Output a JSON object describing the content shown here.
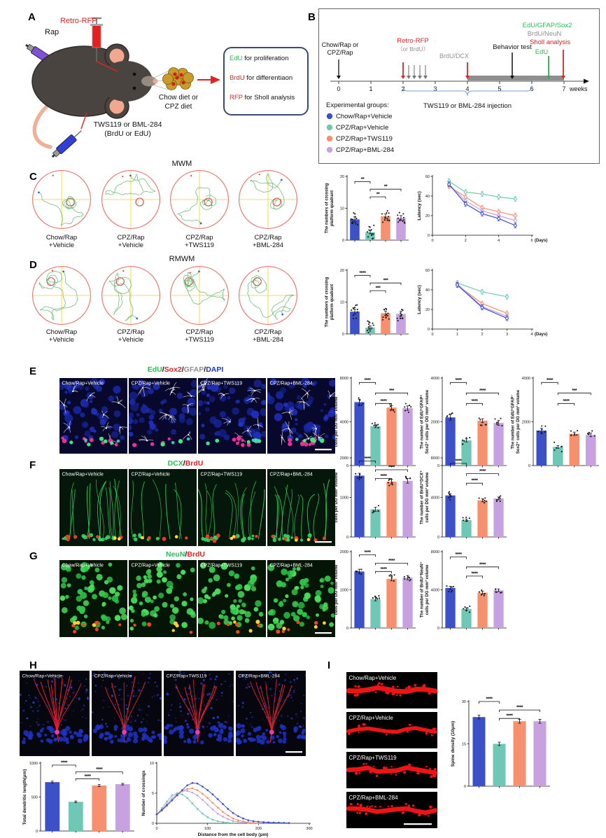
{
  "colors": {
    "blue": "#3c50c8",
    "teal": "#6fc7b5",
    "salmon": "#f7906e",
    "violet": "#c7a1e0",
    "green_text": "#22c552",
    "red_text": "#e32222",
    "gray_text": "#909090",
    "blue_text": "#1a35e0",
    "maze_circle": "#e87a72",
    "maze_cross": "#f0e050",
    "maze_path": "#55b060"
  },
  "groups": [
    {
      "line1": "Chow/Rap",
      "line2": "+Vehicle",
      "full": "Chow/Rap+Vehicle"
    },
    {
      "line1": "CPZ/Rap",
      "line2": "+Vehicle",
      "full": "CPZ/Rap+Vehicle"
    },
    {
      "line1": "CPZ/Rap",
      "line2": "+TWS119",
      "full": "CPZ/Rap+TWS119"
    },
    {
      "line1": "CPZ/Rap",
      "line2": "+BML-284",
      "full": "CPZ/Rap+BML-284"
    }
  ],
  "panelA": {
    "label": "A",
    "rap": "Rap",
    "retro_rfp": "Retro-RFP",
    "tws": "TWS119 or BML-284",
    "tws2": "(BrdU or EdU)",
    "diet1": "Chow diet or",
    "diet2": "CPZ diet",
    "box_lines": [
      {
        "key": "EdU",
        "key_color": "#22c552",
        "rest": " for proliferation"
      },
      {
        "key": "BrdU",
        "key_color": "#e32222",
        "rest": " for differentiaon"
      },
      {
        "key": "RFP",
        "key_color": "#e32222",
        "rest": " for Sholl analysis"
      }
    ]
  },
  "panelB": {
    "label": "B",
    "start1": "Chow/Rap or",
    "start2": "CPZ/Rap",
    "retro": "Retro-RFP",
    "or_brdu": "（or BrdU）",
    "brdu_dcx": "BrdU/DCX",
    "behavior": "Behavior test",
    "edu_gfap_sox2": "EdU/GFAP/Sox2",
    "brdu_neun": "BrdU/NeuN",
    "sholl": "Sholl analysis",
    "edu": "EdU",
    "weeks_label": "weeks",
    "week_numbers": [
      "0",
      "1",
      "2",
      "3",
      "4",
      "5",
      "6",
      "7"
    ],
    "bracket_label": "TWS119 or BML-284 injection",
    "legend_title": "Experimental groups:"
  },
  "panelC": {
    "label": "C",
    "title": "MWM"
  },
  "panelD": {
    "label": "D",
    "title": "RMWM"
  },
  "panelE": {
    "label": "E",
    "title_parts": [
      {
        "t": "EdU",
        "c": "#22c552"
      },
      {
        "t": "/",
        "c": "#111"
      },
      {
        "t": "Sox2",
        "c": "#e32222"
      },
      {
        "t": "/",
        "c": "#111"
      },
      {
        "t": "GFAP",
        "c": "#909090"
      },
      {
        "t": "/",
        "c": "#111"
      },
      {
        "t": "DAPI",
        "c": "#1a35e0"
      }
    ]
  },
  "panelF": {
    "label": "F",
    "title_parts": [
      {
        "t": "DCX",
        "c": "#22c552"
      },
      {
        "t": "/",
        "c": "#111"
      },
      {
        "t": "BrdU",
        "c": "#e32222"
      }
    ]
  },
  "panelG": {
    "label": "G",
    "title_parts": [
      {
        "t": "NeuN",
        "c": "#22c552"
      },
      {
        "t": "/",
        "c": "#111"
      },
      {
        "t": "BrdU",
        "c": "#e32222"
      }
    ]
  },
  "panelH": {
    "label": "H"
  },
  "panelI": {
    "label": "I"
  },
  "chart_data": [
    {
      "id": "mwm_cross",
      "type": "bar",
      "ylabel": [
        "The numbers of crossing",
        "platform quadrant"
      ],
      "ylim": [
        0,
        20
      ],
      "yticks": [
        0,
        10,
        20
      ],
      "values": [
        6.5,
        2.5,
        7.5,
        7.0
      ],
      "errors": [
        0.8,
        0.5,
        0.7,
        0.7
      ],
      "dots": 12,
      "spread": 2.2,
      "sig": [
        {
          "a": 0,
          "b": 1,
          "s": "**",
          "h": 0.92
        },
        {
          "a": 1,
          "b": 3,
          "s": "**",
          "h": 0.8
        },
        {
          "a": 1,
          "b": 2,
          "s": "**",
          "h": 0.68
        }
      ]
    },
    {
      "id": "mwm_latency",
      "type": "line",
      "ylabel": "Latency (sec)",
      "xlabel": "(Days)",
      "ylim": [
        0,
        60
      ],
      "yticks": [
        0,
        20,
        40,
        60
      ],
      "xlim": [
        0,
        6
      ],
      "xticks": [
        0,
        2,
        4,
        6
      ],
      "x": [
        1,
        2,
        3,
        4,
        5
      ],
      "err": 2.5,
      "series": [
        {
          "color": "teal",
          "y": [
            55,
            44,
            42,
            39,
            37
          ]
        },
        {
          "color": "salmon",
          "y": [
            50,
            39,
            28,
            24,
            20
          ]
        },
        {
          "color": "violet",
          "y": [
            52,
            35,
            25,
            20,
            15
          ]
        },
        {
          "color": "blue",
          "y": [
            52,
            32,
            22,
            17,
            10
          ]
        }
      ]
    },
    {
      "id": "rmwm_cross",
      "type": "bar",
      "ylabel": [
        "The numbers of crossing",
        "platform quadrant"
      ],
      "ylim": [
        0,
        20
      ],
      "yticks": [
        0,
        10,
        20
      ],
      "values": [
        7.0,
        2.0,
        6.5,
        6.3
      ],
      "errors": [
        0.7,
        0.5,
        0.7,
        0.8
      ],
      "dots": 12,
      "spread": 2.2,
      "sig": [
        {
          "a": 0,
          "b": 1,
          "s": "****",
          "h": 0.92
        },
        {
          "a": 1,
          "b": 3,
          "s": "***",
          "h": 0.8
        },
        {
          "a": 1,
          "b": 2,
          "s": "***",
          "h": 0.68
        }
      ]
    },
    {
      "id": "rmwm_latency",
      "type": "line",
      "ylabel": "Latency (sec)",
      "xlabel": "(Days)",
      "ylim": [
        0,
        60
      ],
      "yticks": [
        0,
        20,
        40,
        60
      ],
      "xlim": [
        0,
        4
      ],
      "xticks": [
        0,
        1,
        2,
        3,
        4
      ],
      "x": [
        1,
        2,
        3
      ],
      "err": 2.5,
      "series": [
        {
          "color": "teal",
          "y": [
            47,
            38,
            33
          ]
        },
        {
          "color": "salmon",
          "y": [
            45,
            26,
            16
          ]
        },
        {
          "color": "violet",
          "y": [
            46,
            23,
            13
          ]
        },
        {
          "color": "blue",
          "y": [
            45,
            22,
            11
          ]
        }
      ]
    },
    {
      "id": "edu_cells",
      "type": "bar",
      "ylabel": [
        "The number of EdU⁺",
        "cells per DG mm³ volume"
      ],
      "ylim": [
        0,
        8000
      ],
      "yticks": [
        0,
        4000,
        8000
      ],
      "values": [
        5800,
        3600,
        5300,
        5250
      ],
      "errors": [
        260,
        140,
        180,
        200
      ],
      "dots": 6,
      "spread": 420,
      "sig": [
        {
          "a": 0,
          "b": 1,
          "s": "****",
          "h": 0.95
        },
        {
          "a": 1,
          "b": 3,
          "s": "***",
          "h": 0.83
        },
        {
          "a": 1,
          "b": 2,
          "s": "****",
          "h": 0.71
        }
      ]
    },
    {
      "id": "edu_gfap_sox2",
      "type": "bar",
      "ylabel": [
        "The number of EdU⁺GFAP⁺",
        "Sox2⁺ cells per DG mm³ volume"
      ],
      "ylim": [
        0,
        4000
      ],
      "yticks": [
        0,
        2000,
        4000
      ],
      "values": [
        2200,
        1150,
        2050,
        1950
      ],
      "errors": [
        130,
        70,
        90,
        110
      ],
      "dots": 6,
      "sig": [
        {
          "a": 0,
          "b": 1,
          "s": "****",
          "h": 0.95
        },
        {
          "a": 1,
          "b": 3,
          "s": "****",
          "h": 0.83
        },
        {
          "a": 1,
          "b": 2,
          "s": "****",
          "h": 0.71
        }
      ]
    },
    {
      "id": "edu_nogfap_sox2",
      "type": "bar",
      "ylabel": [
        "The number of EdU⁺GFAP⁻",
        "Sox2⁺ cells per DG mm³ volume"
      ],
      "ylim": [
        0,
        4000
      ],
      "yticks": [
        0,
        2000,
        4000
      ],
      "values": [
        1600,
        850,
        1450,
        1400
      ],
      "errors": [
        100,
        60,
        80,
        80
      ],
      "dots": 6,
      "sig": [
        {
          "a": 0,
          "b": 1,
          "s": "****",
          "h": 0.95
        },
        {
          "a": 1,
          "b": 3,
          "s": "***",
          "h": 0.83
        },
        {
          "a": 1,
          "b": 2,
          "s": "****",
          "h": 0.71
        }
      ]
    },
    {
      "id": "brdu_cells_f",
      "type": "bar",
      "ylabel": [
        "The number of BrdU⁺",
        "cells per DG mm³ volume"
      ],
      "ylim": [
        0,
        2000
      ],
      "yticks": [
        0,
        1000,
        2000
      ],
      "values": [
        1550,
        700,
        1400,
        1420
      ],
      "errors": [
        60,
        50,
        60,
        60
      ],
      "dots": 6,
      "sig": [
        {
          "a": 0,
          "b": 1,
          "s": "****",
          "h": 0.96
        },
        {
          "a": 1,
          "b": 3,
          "s": "****",
          "h": 0.85
        },
        {
          "a": 1,
          "b": 2,
          "s": "****",
          "h": 0.74
        }
      ]
    },
    {
      "id": "brdu_dcx",
      "type": "bar",
      "ylabel": [
        "The number of BrdU⁺DCX⁺",
        "cells per DG mm³ volume"
      ],
      "ylim": [
        0,
        8000
      ],
      "yticks": [
        0,
        4000,
        8000
      ],
      "values": [
        4200,
        1700,
        3700,
        3900
      ],
      "errors": [
        170,
        120,
        150,
        140
      ],
      "dots": 6,
      "sig": [
        {
          "a": 0,
          "b": 1,
          "s": "****",
          "h": 0.93
        },
        {
          "a": 1,
          "b": 3,
          "s": "****",
          "h": 0.8
        },
        {
          "a": 1,
          "b": 2,
          "s": "****",
          "h": 0.68
        }
      ]
    },
    {
      "id": "brdu_cells_g",
      "type": "bar",
      "ylabel": [
        "The number of BrdU⁺",
        "cells per DG mm³ volume"
      ],
      "ylim": [
        0,
        2000
      ],
      "yticks": [
        0,
        1000,
        2000
      ],
      "values": [
        1480,
        760,
        1290,
        1320
      ],
      "errors": [
        60,
        50,
        55,
        55
      ],
      "dots": 6,
      "sig": [
        {
          "a": 0,
          "b": 1,
          "s": "****",
          "h": 0.96
        },
        {
          "a": 1,
          "b": 3,
          "s": "****",
          "h": 0.85
        },
        {
          "a": 1,
          "b": 2,
          "s": "****",
          "h": 0.74
        }
      ]
    },
    {
      "id": "brdu_neun",
      "type": "bar",
      "ylabel": [
        "The number of BrdU⁺NeuN⁺",
        "cells per DG mm³ volume"
      ],
      "ylim": [
        0,
        8000
      ],
      "yticks": [
        0,
        4000,
        8000
      ],
      "values": [
        4200,
        2000,
        3700,
        3950
      ],
      "errors": [
        160,
        120,
        150,
        140
      ],
      "dots": 6,
      "sig": [
        {
          "a": 0,
          "b": 1,
          "s": "****",
          "h": 0.93
        },
        {
          "a": 1,
          "b": 3,
          "s": "****",
          "h": 0.8
        },
        {
          "a": 1,
          "b": 2,
          "s": "****",
          "h": 0.68
        }
      ]
    },
    {
      "id": "dendritic_length",
      "type": "bar",
      "ylabel": [
        "Total dendritic length(μm)"
      ],
      "ylim": [
        0,
        1000
      ],
      "yticks": [
        0,
        500,
        1000
      ],
      "values": [
        720,
        430,
        670,
        690
      ],
      "errors": [
        15,
        12,
        14,
        12
      ],
      "dots": 0,
      "sig": [
        {
          "a": 0,
          "b": 1,
          "s": "****",
          "h": 0.97
        },
        {
          "a": 1,
          "b": 3,
          "s": "****",
          "h": 0.87
        },
        {
          "a": 1,
          "b": 2,
          "s": "****",
          "h": 0.77
        }
      ]
    },
    {
      "id": "sholl",
      "type": "line",
      "ylabel": "Number of crossings",
      "xlabel": "Distance from the cell body (μm)",
      "xlabel_pos": "center",
      "ylim": [
        0,
        10
      ],
      "yticks": [
        0,
        5,
        10
      ],
      "xlim": [
        0,
        300
      ],
      "xticks": [
        0,
        100,
        200,
        300
      ],
      "x0": 0,
      "dx": 10,
      "marker": "dot",
      "series": [
        {
          "color": "teal",
          "y": [
            1.4,
            2.5,
            3.6,
            4.6,
            5.0,
            4.8,
            4.2,
            3.3,
            2.4,
            1.6,
            1.0,
            0.6,
            0.35,
            0.2,
            0.1,
            0.04
          ]
        },
        {
          "color": "violet",
          "y": [
            1.5,
            2.3,
            3.2,
            4.1,
            4.9,
            5.3,
            5.4,
            5.1,
            4.6,
            3.9,
            3.1,
            2.3,
            1.6,
            1.1,
            0.7,
            0.4,
            0.25,
            0.15,
            0.08,
            0.03
          ]
        },
        {
          "color": "salmon",
          "y": [
            1.4,
            2.1,
            2.9,
            3.8,
            4.6,
            5.4,
            5.7,
            5.8,
            5.5,
            4.9,
            4.2,
            3.4,
            2.6,
            1.9,
            1.3,
            0.8,
            0.5,
            0.3,
            0.15,
            0.08,
            0.03
          ]
        },
        {
          "color": "blue",
          "y": [
            1.5,
            2.2,
            3.0,
            3.8,
            4.7,
            5.5,
            6.3,
            6.7,
            6.6,
            6.1,
            5.5,
            4.8,
            4.0,
            3.2,
            2.4,
            1.7,
            1.2,
            0.8,
            0.5,
            0.35,
            0.25,
            0.2,
            0.15,
            0.12,
            0.1,
            0.07,
            0.05
          ]
        }
      ]
    },
    {
      "id": "spine_density",
      "type": "bar",
      "ylabel": [
        "Spine density (10μm)"
      ],
      "ylim": [
        0,
        30
      ],
      "yticks": [
        0,
        15,
        30
      ],
      "values": [
        24.5,
        15.0,
        23.0,
        23.0
      ],
      "errors": [
        0.7,
        0.6,
        0.7,
        0.7
      ],
      "dots": 0,
      "top": 10,
      "sig": [
        {
          "a": 0,
          "b": 1,
          "s": "****",
          "h": 1.0
        },
        {
          "a": 1,
          "b": 3,
          "s": "****",
          "h": 0.9
        },
        {
          "a": 1,
          "b": 2,
          "s": "****",
          "h": 0.8
        }
      ]
    }
  ]
}
